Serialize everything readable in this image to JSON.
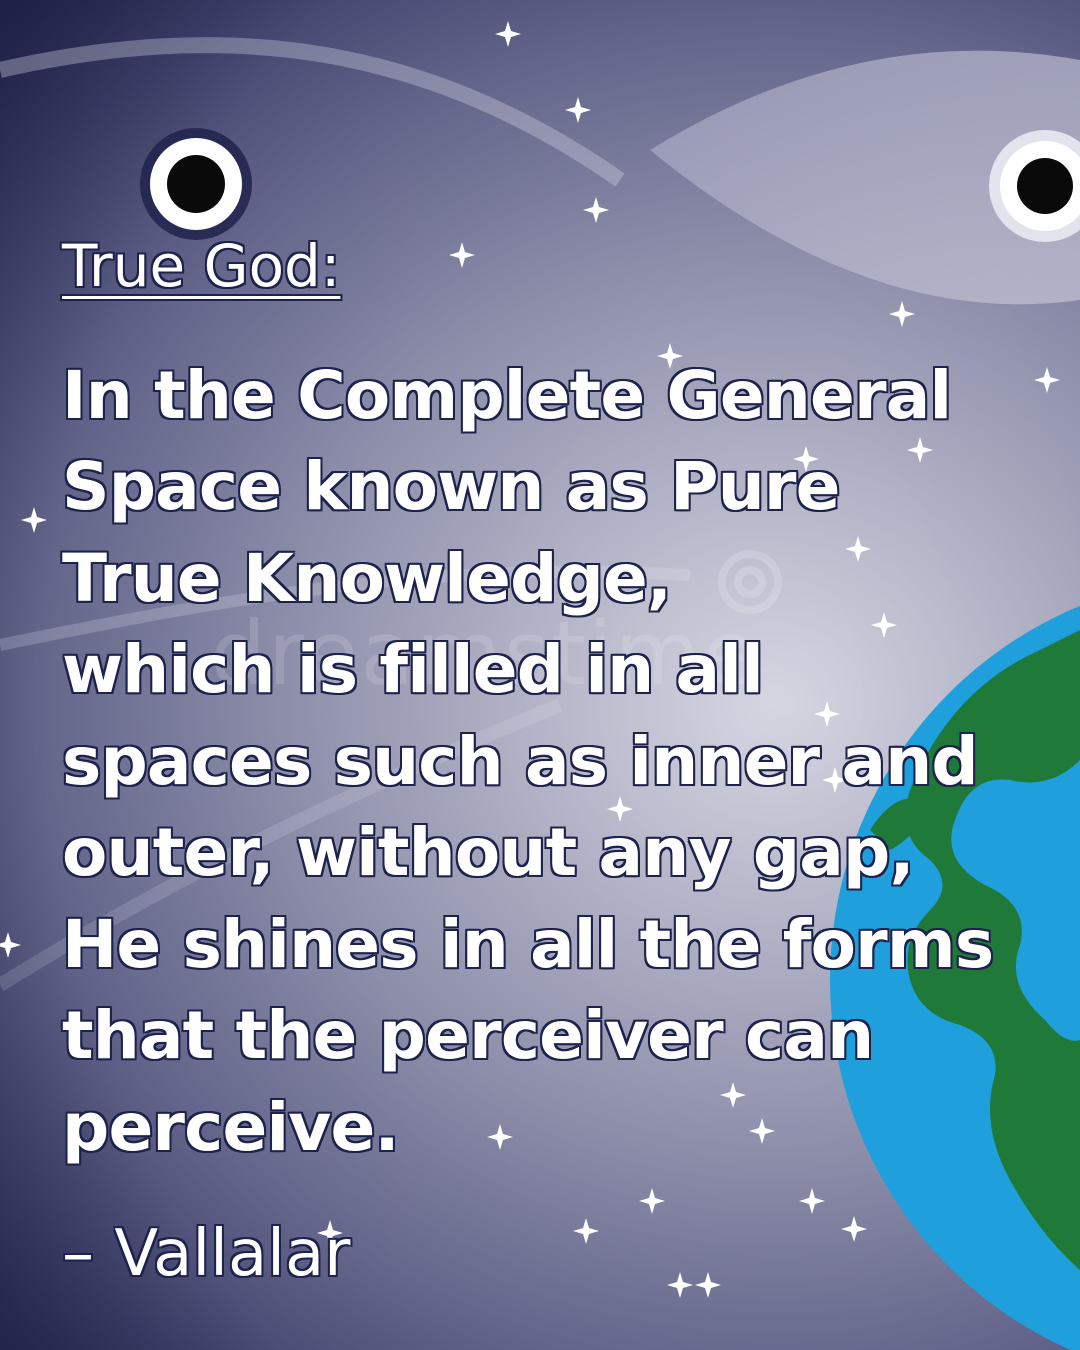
{
  "title": "True God:",
  "quote_lines": [
    "In the Complete General",
    "Space known as Pure",
    "True Knowledge,",
    "which is filled in all",
    "spaces such as inner and",
    "outer, without any gap,",
    "He shines in all the forms",
    "that the perceiver can",
    "perceive."
  ],
  "author": "– Vallalar",
  "watermark": "dreamstime",
  "colors": {
    "text": "#ffffff",
    "outline": "#1d224c",
    "ocean": "#1fa0dc",
    "land": "#1f7a3a",
    "background_dark": "#252852",
    "background_light": "#d6d6e2"
  }
}
